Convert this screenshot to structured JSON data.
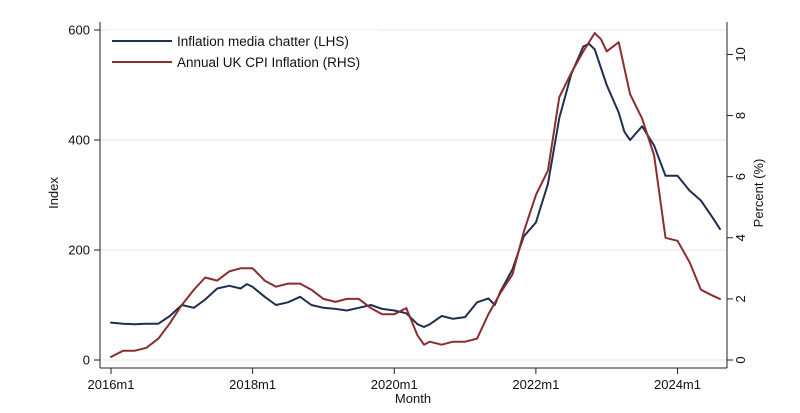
{
  "chart_data": {
    "type": "line",
    "title": "",
    "xlabel": "Month",
    "ylabel": "Index",
    "y2label": "Percent (%)",
    "x_tick_labels": [
      "2016m1",
      "2018m1",
      "2020m1",
      "2022m1",
      "2024m1"
    ],
    "x_tick_years": [
      2016,
      2018,
      2020,
      2022,
      2024
    ],
    "xlim": [
      2016.0,
      2024.6
    ],
    "ylim": [
      0,
      600
    ],
    "y2lim": [
      0,
      10.8
    ],
    "y_ticks": [
      0,
      200,
      400,
      600
    ],
    "y2_ticks": [
      0,
      2,
      4,
      6,
      8,
      10
    ],
    "grid": "horizontal",
    "legend_position": "top-left",
    "series": [
      {
        "name": "Inflation media chatter (LHS)",
        "axis": "left",
        "color": "#1f2f4f",
        "x": [
          2016.0,
          2016.17,
          2016.33,
          2016.5,
          2016.67,
          2016.83,
          2017.0,
          2017.17,
          2017.33,
          2017.5,
          2017.67,
          2017.83,
          2017.92,
          2018.0,
          2018.17,
          2018.33,
          2018.5,
          2018.67,
          2018.83,
          2019.0,
          2019.17,
          2019.33,
          2019.5,
          2019.67,
          2019.83,
          2020.0,
          2020.17,
          2020.33,
          2020.42,
          2020.5,
          2020.67,
          2020.83,
          2021.0,
          2021.17,
          2021.33,
          2021.42,
          2021.5,
          2021.67,
          2021.83,
          2022.0,
          2022.17,
          2022.33,
          2022.5,
          2022.67,
          2022.75,
          2022.83,
          2023.0,
          2023.17,
          2023.25,
          2023.33,
          2023.5,
          2023.67,
          2023.83,
          2024.0,
          2024.17,
          2024.33,
          2024.5,
          2024.6
        ],
        "y": [
          68,
          66,
          65,
          66,
          66,
          80,
          100,
          95,
          110,
          130,
          135,
          130,
          138,
          133,
          115,
          100,
          105,
          115,
          100,
          95,
          93,
          90,
          95,
          100,
          93,
          90,
          85,
          65,
          60,
          65,
          80,
          75,
          78,
          105,
          112,
          100,
          125,
          165,
          225,
          250,
          320,
          440,
          520,
          570,
          575,
          565,
          500,
          450,
          415,
          400,
          425,
          390,
          335,
          335,
          308,
          290,
          258,
          238
        ]
      },
      {
        "name": "Annual UK CPI Inflation (RHS)",
        "axis": "right",
        "color": "#8b2e2e",
        "x": [
          2016.0,
          2016.17,
          2016.33,
          2016.5,
          2016.67,
          2016.83,
          2017.0,
          2017.17,
          2017.33,
          2017.5,
          2017.67,
          2017.83,
          2018.0,
          2018.17,
          2018.33,
          2018.5,
          2018.67,
          2018.83,
          2019.0,
          2019.17,
          2019.33,
          2019.5,
          2019.67,
          2019.83,
          2020.0,
          2020.17,
          2020.33,
          2020.42,
          2020.5,
          2020.67,
          2020.83,
          2021.0,
          2021.17,
          2021.33,
          2021.5,
          2021.67,
          2021.83,
          2022.0,
          2022.17,
          2022.33,
          2022.5,
          2022.67,
          2022.83,
          2022.92,
          2023.0,
          2023.17,
          2023.33,
          2023.5,
          2023.67,
          2023.83,
          2024.0,
          2024.17,
          2024.33,
          2024.5,
          2024.6
        ],
        "y": [
          0.1,
          0.3,
          0.3,
          0.4,
          0.7,
          1.2,
          1.8,
          2.3,
          2.7,
          2.6,
          2.9,
          3.0,
          3.0,
          2.6,
          2.4,
          2.5,
          2.5,
          2.3,
          2.0,
          1.9,
          2.0,
          2.0,
          1.7,
          1.5,
          1.5,
          1.7,
          0.8,
          0.5,
          0.6,
          0.5,
          0.6,
          0.6,
          0.7,
          1.5,
          2.2,
          2.8,
          4.2,
          5.4,
          6.2,
          8.6,
          9.4,
          10.1,
          10.7,
          10.5,
          10.1,
          10.4,
          8.7,
          7.9,
          6.7,
          4.0,
          3.9,
          3.2,
          2.3,
          2.1,
          2.0
        ]
      }
    ]
  }
}
